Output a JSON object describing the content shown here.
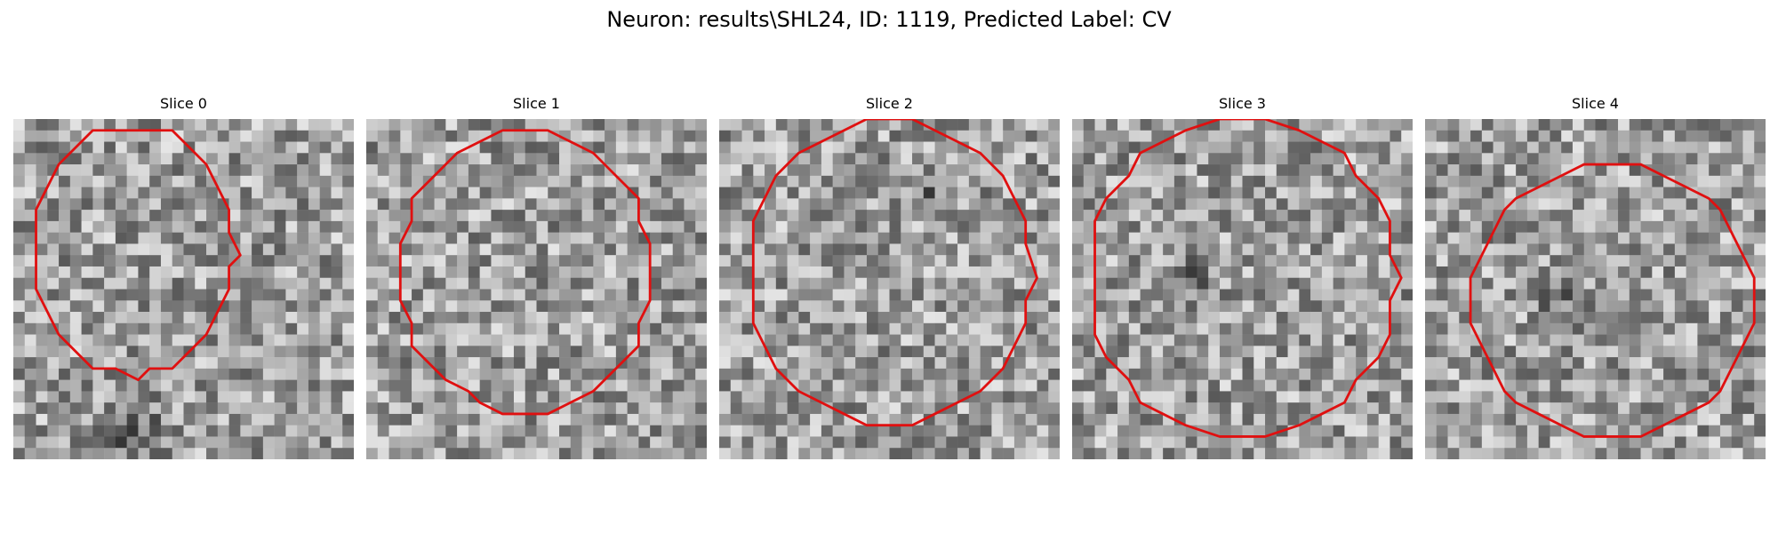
{
  "figure": {
    "title": "Neuron: results\\SHL24, ID: 1119, Predicted Label: CV"
  },
  "panels": [
    {
      "title": "Slice 0",
      "seed": 11
    },
    {
      "title": "Slice 1",
      "seed": 23
    },
    {
      "title": "Slice 2",
      "seed": 37
    },
    {
      "title": "Slice 3",
      "seed": 49
    },
    {
      "title": "Slice 4",
      "seed": 61
    }
  ],
  "image": {
    "grid_size": 30,
    "colormap": "gray",
    "contour_color": "#e01010"
  }
}
